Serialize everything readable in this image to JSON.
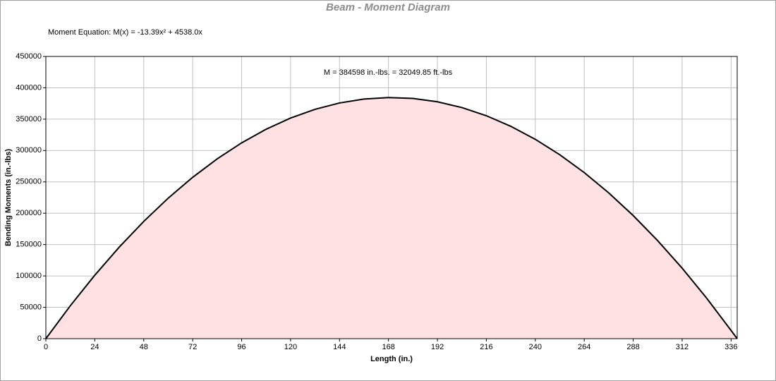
{
  "chart_data": {
    "type": "area",
    "title": "Beam - Moment Diagram",
    "subtitle": "Moment Equation:  M(x) = -13.39x² + 4538.0x",
    "annotation": "M = 384598 in.-lbs. = 32049.85 ft.-lbs",
    "x_label": "Length (in.)",
    "y_label": "Bending Moments (in.-lbs)",
    "x": [
      0,
      12,
      24,
      36,
      48,
      60,
      72,
      84,
      96,
      108,
      120,
      132,
      144,
      156,
      168,
      180,
      192,
      204,
      216,
      228,
      240,
      252,
      264,
      276,
      288,
      300,
      312,
      324,
      336,
      339
    ],
    "values": [
      0,
      52528,
      101199,
      146015,
      186973,
      224076,
      257322,
      286712,
      312246,
      333923,
      351744,
      365709,
      375817,
      382069,
      384465,
      383004,
      377687,
      368514,
      355484,
      338598,
      317856,
      293257,
      264803,
      232491,
      196324,
      156300,
      112420,
      64683,
      13091,
      0
    ],
    "color": "#000000",
    "fill_color": "#ffe1e3",
    "xlim": [
      0,
      339
    ],
    "ylim": [
      0,
      450000
    ],
    "xticks": [
      0,
      24,
      48,
      72,
      96,
      120,
      144,
      168,
      192,
      216,
      240,
      264,
      288,
      312,
      336
    ],
    "yticks": [
      0,
      50000,
      100000,
      150000,
      200000,
      250000,
      300000,
      350000,
      400000,
      450000
    ],
    "grid": true
  }
}
